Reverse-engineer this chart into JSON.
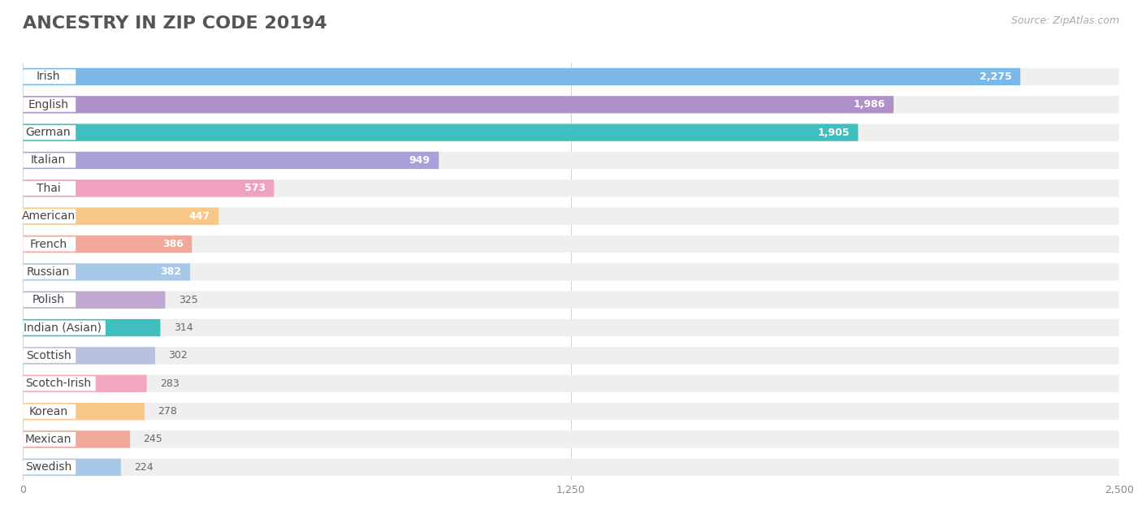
{
  "title": "ANCESTRY IN ZIP CODE 20194",
  "source": "Source: ZipAtlas.com",
  "categories": [
    "Irish",
    "English",
    "German",
    "Italian",
    "Thai",
    "American",
    "French",
    "Russian",
    "Polish",
    "Indian (Asian)",
    "Scottish",
    "Scotch-Irish",
    "Korean",
    "Mexican",
    "Swedish"
  ],
  "values": [
    2275,
    1986,
    1905,
    949,
    573,
    447,
    386,
    382,
    325,
    314,
    302,
    283,
    278,
    245,
    224
  ],
  "bar_colors": [
    "#7ab8e8",
    "#b090c8",
    "#40bfc0",
    "#a8a0d8",
    "#f0a0c0",
    "#f8c888",
    "#f0a898",
    "#a8c8e8",
    "#c0a8d0",
    "#40bfc0",
    "#b8c0e0",
    "#f4a8c0",
    "#f8c888",
    "#f0a898",
    "#a8c8e8"
  ],
  "xlim": [
    0,
    2500
  ],
  "xticks": [
    0,
    1250,
    2500
  ],
  "background_color": "#ffffff",
  "row_bg_color": "#efefef",
  "title_fontsize": 16,
  "label_fontsize": 10,
  "value_fontsize": 9,
  "source_fontsize": 9
}
